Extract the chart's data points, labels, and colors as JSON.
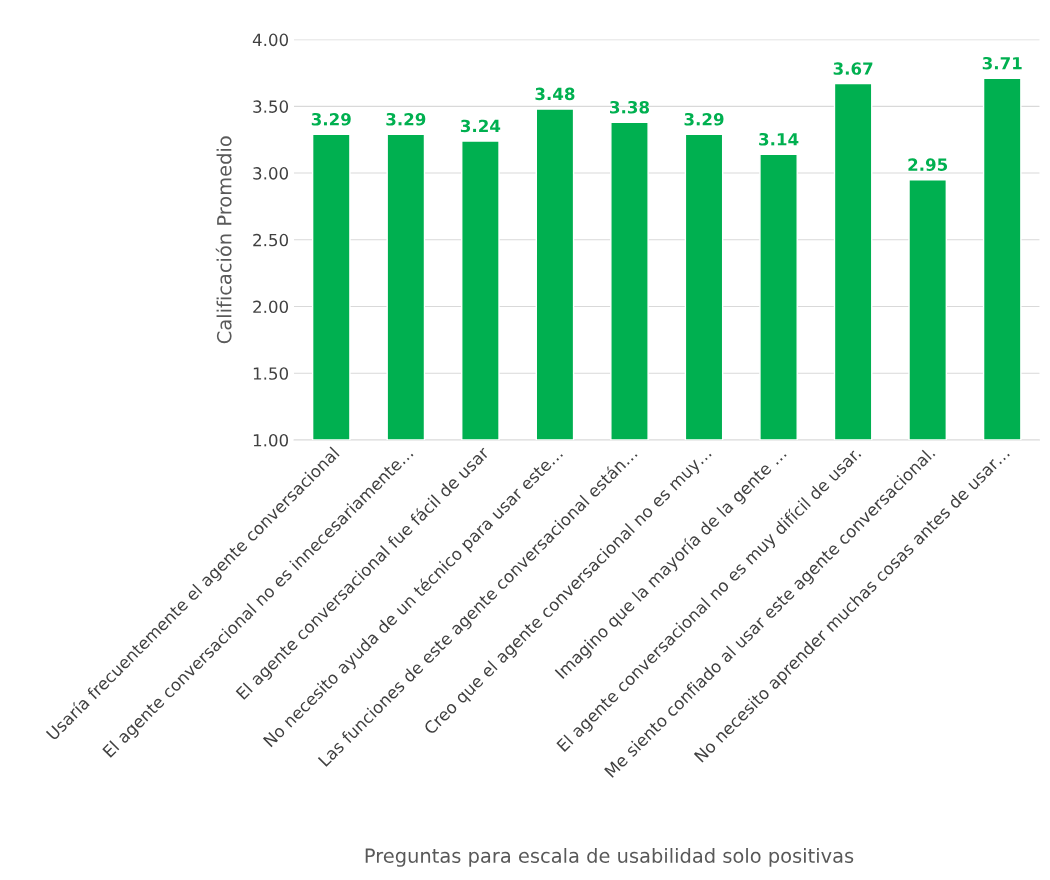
{
  "chart_data": {
    "type": "bar",
    "xlabel": "Preguntas para escala de usabilidad solo positivas",
    "ylabel": "Calificación Promedio",
    "categories": [
      "Usaría frecuentemente el agente conversacional",
      "El agente conversacional no es innecesariamente…",
      "El agente conversacional fue fácil de usar",
      "No necesito ayuda de un técnico para usar este…",
      "Las funciones de este agente conversacional están…",
      "Creo que el agente conversacional no es muy…",
      "Imagino que la mayoría de la gente …",
      "El agente conversacional no es muy difícil de usar.",
      "Me siento confiado al usar este agente conversacional.",
      "No necesito aprender muchas cosas antes de usar…"
    ],
    "values": [
      3.29,
      3.29,
      3.24,
      3.48,
      3.38,
      3.29,
      3.14,
      3.67,
      2.95,
      3.71
    ],
    "color": "#00b050",
    "ylim": [
      1,
      4
    ],
    "yticks": [
      {
        "value": 1,
        "label": "1.00"
      },
      {
        "value": 1.5,
        "label": "1.50"
      },
      {
        "value": 2,
        "label": "2.00"
      },
      {
        "value": 2.5,
        "label": "2.50"
      },
      {
        "value": 3,
        "label": "3.00"
      },
      {
        "value": 3.5,
        "label": "3.50"
      },
      {
        "value": 4,
        "label": "4.00"
      }
    ],
    "grid": "y",
    "data_labels": true
  }
}
